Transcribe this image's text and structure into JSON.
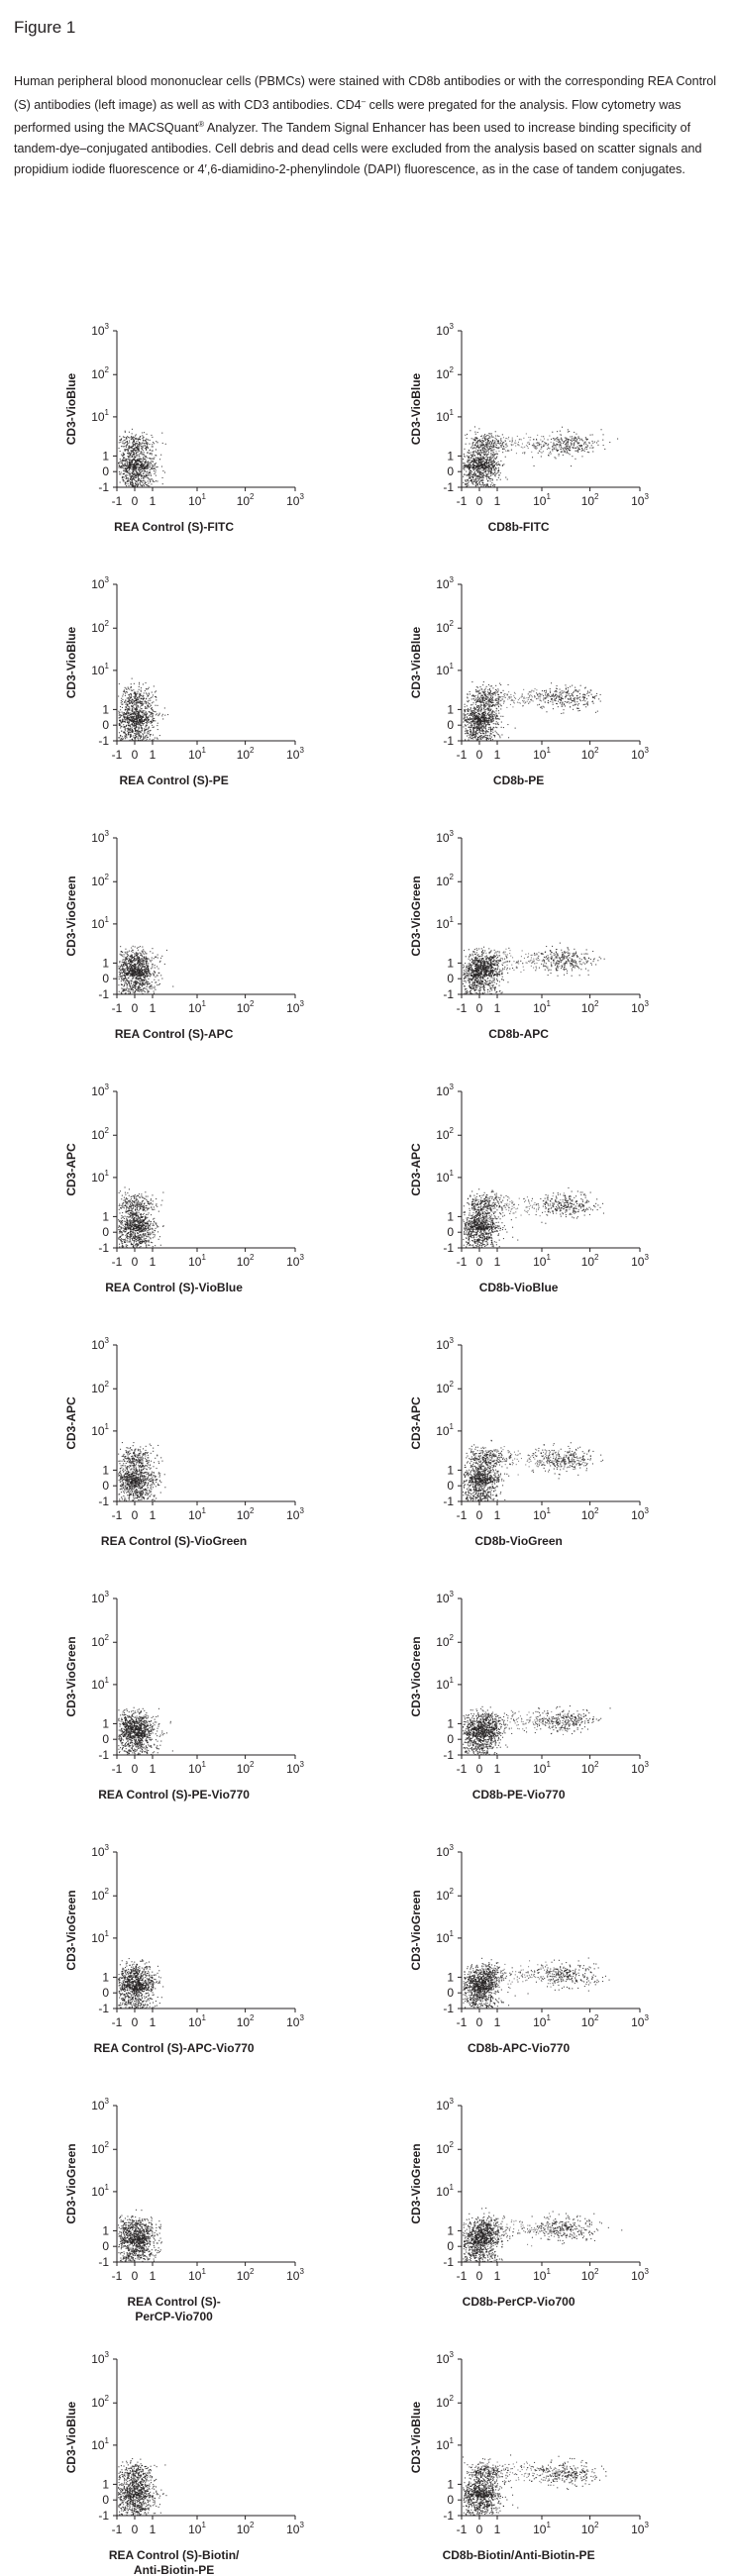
{
  "figure_title": "Figure 1",
  "caption": {
    "p1": "Human peripheral blood mononuclear cells (PBMCs) were stained with CD8b antibodies or with the corresponding REA Control (S) antibodies (left image) as well as with CD3 antibodies. CD4",
    "p2": " cells were pregated for the analysis. Flow cytometry was performed using the MACSQuant",
    "p3": " Analyzer. The Tandem Signal Enhancer has been used to increase binding specificity of tandem-dye–conjugated antibodies. Cell debris and dead cells were excluded from the analysis based on scatter signals and propidium iodide fluorescence or 4′,6-diamidino-2-phenylindole (DAPI) fluorescence, as in the case of tandem conjugates.",
    "sup_minus": "–",
    "sup_reg": "®",
    "ghost_line": "Human peripheral blood mononuclear cells (PBMCs) were stained with CD8b antibodies or with the"
  },
  "axis_ticks": {
    "x": [
      "-1",
      "0",
      "1",
      "10",
      "10",
      "10"
    ],
    "x_exp": [
      "",
      "",
      "",
      "1",
      "2",
      "3"
    ],
    "y": [
      "-1",
      "0",
      "1",
      "10",
      "10",
      "10"
    ],
    "y_exp": [
      "",
      "",
      "",
      "1",
      "2",
      "3"
    ]
  },
  "chart_data": [
    {
      "type": "scatter",
      "xlabel": "REA Control (S)-FITC",
      "ylabel": "CD3-VioBlue",
      "populations": [
        {
          "x": 0.0,
          "y": 2.0
        },
        {
          "x": 0.0,
          "y": 0.2
        }
      ]
    },
    {
      "type": "scatter",
      "xlabel": "CD8b-FITC",
      "ylabel": "CD3-VioBlue",
      "populations": [
        {
          "x": 0.3,
          "y": 2.0
        },
        {
          "x": 30,
          "y": 2.0
        },
        {
          "x": 0.0,
          "y": 0.2
        }
      ]
    },
    {
      "type": "scatter",
      "xlabel": "REA Control (S)-PE",
      "ylabel": "CD3-VioBlue",
      "populations": [
        {
          "x": 0.0,
          "y": 2.0
        },
        {
          "x": 0.0,
          "y": 0.2
        }
      ]
    },
    {
      "type": "scatter",
      "xlabel": "CD8b-PE",
      "ylabel": "CD3-VioBlue",
      "populations": [
        {
          "x": 0.3,
          "y": 2.0
        },
        {
          "x": 30,
          "y": 2.0
        },
        {
          "x": 0.0,
          "y": 0.2
        }
      ]
    },
    {
      "type": "scatter",
      "xlabel": "REA Control (S)-APC",
      "ylabel": "CD3-VioGreen",
      "populations": [
        {
          "x": 0.0,
          "y": 1.2
        },
        {
          "x": 0.0,
          "y": 0.2
        }
      ]
    },
    {
      "type": "scatter",
      "xlabel": "CD8b-APC",
      "ylabel": "CD3-VioGreen",
      "populations": [
        {
          "x": 0.3,
          "y": 1.2
        },
        {
          "x": 30,
          "y": 1.2
        },
        {
          "x": 0.0,
          "y": 0.2
        }
      ]
    },
    {
      "type": "scatter",
      "xlabel": "REA Control (S)-VioBlue",
      "ylabel": "CD3-APC",
      "populations": [
        {
          "x": 0.0,
          "y": 2.0
        },
        {
          "x": 0.0,
          "y": 0.2
        }
      ]
    },
    {
      "type": "scatter",
      "xlabel": "CD8b-VioBlue",
      "ylabel": "CD3-APC",
      "populations": [
        {
          "x": 0.3,
          "y": 2.0
        },
        {
          "x": 30,
          "y": 2.0
        },
        {
          "x": 0.0,
          "y": 0.2
        }
      ]
    },
    {
      "type": "scatter",
      "xlabel": "REA Control (S)-VioGreen",
      "ylabel": "CD3-APC",
      "populations": [
        {
          "x": 0.0,
          "y": 2.0
        },
        {
          "x": 0.0,
          "y": 0.2
        }
      ]
    },
    {
      "type": "scatter",
      "xlabel": "CD8b-VioGreen",
      "ylabel": "CD3-APC",
      "populations": [
        {
          "x": 0.3,
          "y": 2.0
        },
        {
          "x": 30,
          "y": 2.0
        },
        {
          "x": 0.0,
          "y": 0.2
        }
      ]
    },
    {
      "type": "scatter",
      "xlabel": "REA Control (S)-PE-Vio770",
      "ylabel": "CD3-VioGreen",
      "populations": [
        {
          "x": 0.0,
          "y": 1.2
        },
        {
          "x": 0.0,
          "y": 0.2
        }
      ]
    },
    {
      "type": "scatter",
      "xlabel": "CD8b-PE-Vio770",
      "ylabel": "CD3-VioGreen",
      "populations": [
        {
          "x": 0.3,
          "y": 1.2
        },
        {
          "x": 30,
          "y": 1.2
        },
        {
          "x": 0.0,
          "y": 0.2
        }
      ]
    },
    {
      "type": "scatter",
      "xlabel": "REA Control (S)-APC-Vio770",
      "ylabel": "CD3-VioGreen",
      "populations": [
        {
          "x": 0.0,
          "y": 1.2
        },
        {
          "x": 0.0,
          "y": 0.2
        }
      ]
    },
    {
      "type": "scatter",
      "xlabel": "CD8b-APC-Vio770",
      "ylabel": "CD3-VioGreen",
      "populations": [
        {
          "x": 0.3,
          "y": 1.2
        },
        {
          "x": 30,
          "y": 1.2
        },
        {
          "x": 0.0,
          "y": 0.2
        }
      ]
    },
    {
      "type": "scatter",
      "xlabel": [
        "REA Control (S)-",
        "PerCP-Vio700"
      ],
      "ylabel": "CD3-VioGreen",
      "populations": [
        {
          "x": 0.0,
          "y": 1.2
        },
        {
          "x": 0.0,
          "y": 0.2
        }
      ]
    },
    {
      "type": "scatter",
      "xlabel": "CD8b-PerCP-Vio700",
      "ylabel": "CD3-VioGreen",
      "populations": [
        {
          "x": 0.3,
          "y": 1.2
        },
        {
          "x": 30,
          "y": 1.2
        },
        {
          "x": 0.0,
          "y": 0.2
        }
      ]
    },
    {
      "type": "scatter",
      "xlabel": [
        "REA Control (S)-Biotin/",
        "Anti-Biotin-PE"
      ],
      "ylabel": "CD3-VioBlue",
      "populations": [
        {
          "x": 0.0,
          "y": 2.0
        },
        {
          "x": 0.0,
          "y": 0.2
        }
      ]
    },
    {
      "type": "scatter",
      "xlabel": "CD8b-Biotin/Anti-Biotin-PE",
      "ylabel": "CD3-VioBlue",
      "populations": [
        {
          "x": 0.3,
          "y": 2.0
        },
        {
          "x": 30,
          "y": 2.0
        },
        {
          "x": 0.0,
          "y": 0.2
        }
      ]
    }
  ]
}
